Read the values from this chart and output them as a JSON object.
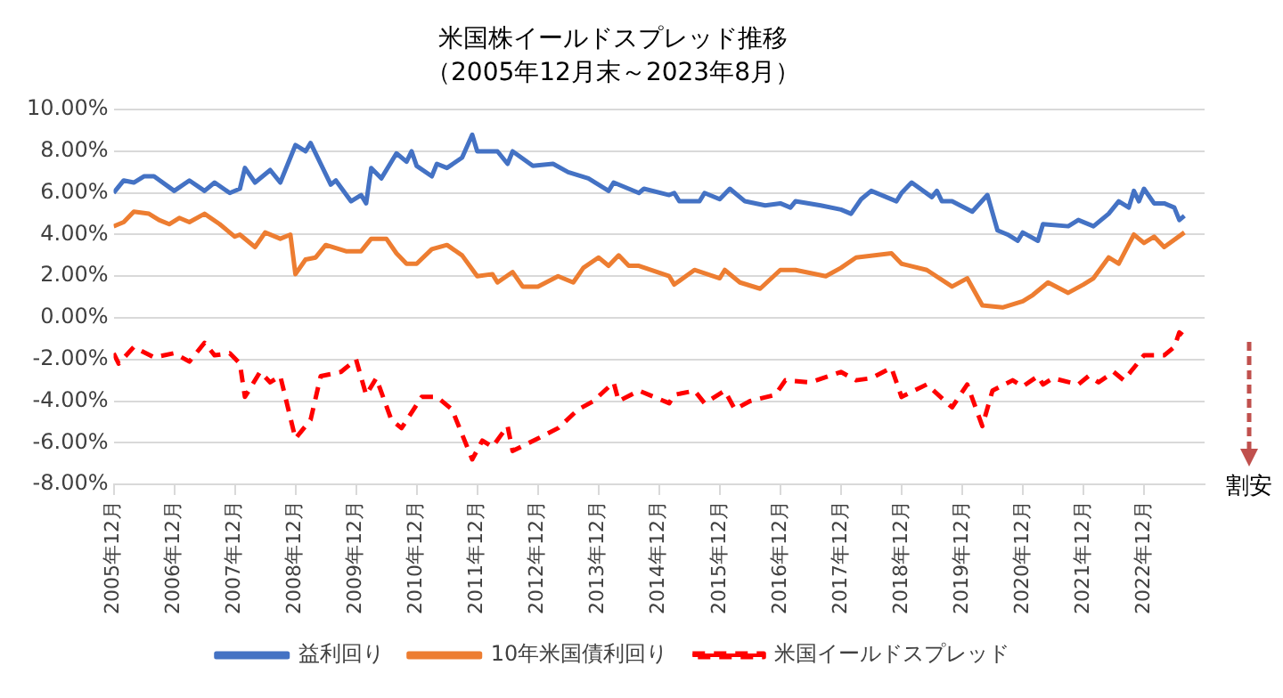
{
  "chart_data": {
    "type": "line",
    "title": "米国株イールドスプレッド推移",
    "subtitle": "（2005年12月末～2023年8月）",
    "annotations": [
      "割安"
    ],
    "xlim": [
      "2005-12",
      "2023-12"
    ],
    "xticks": [
      {
        "value": "2005-12",
        "label": "2005年12月"
      },
      {
        "value": "2006-12",
        "label": "2006年12月"
      },
      {
        "value": "2007-12",
        "label": "2007年12月"
      },
      {
        "value": "2008-12",
        "label": "2008年12月"
      },
      {
        "value": "2009-12",
        "label": "2009年12月"
      },
      {
        "value": "2010-12",
        "label": "2010年12月"
      },
      {
        "value": "2011-12",
        "label": "2011年12月"
      },
      {
        "value": "2012-12",
        "label": "2012年12月"
      },
      {
        "value": "2013-12",
        "label": "2013年12月"
      },
      {
        "value": "2014-12",
        "label": "2014年12月"
      },
      {
        "value": "2015-12",
        "label": "2015年12月"
      },
      {
        "value": "2016-12",
        "label": "2016年12月"
      },
      {
        "value": "2017-12",
        "label": "2017年12月"
      },
      {
        "value": "2018-12",
        "label": "2018年12月"
      },
      {
        "value": "2019-12",
        "label": "2019年12月"
      },
      {
        "value": "2020-12",
        "label": "2020年12月"
      },
      {
        "value": "2021-12",
        "label": "2021年12月"
      },
      {
        "value": "2022-12",
        "label": "2022年12月"
      }
    ],
    "ylim": [
      -8,
      10
    ],
    "yticks": [
      {
        "value": -8,
        "label": "-8.00%"
      },
      {
        "value": -6,
        "label": "-6.00%"
      },
      {
        "value": -4,
        "label": "-4.00%"
      },
      {
        "value": -2,
        "label": "-2.00%"
      },
      {
        "value": 0,
        "label": "0.00%"
      },
      {
        "value": 2,
        "label": "2.00%"
      },
      {
        "value": 4,
        "label": "4.00%"
      },
      {
        "value": 6,
        "label": "6.00%"
      },
      {
        "value": 8,
        "label": "8.00%"
      },
      {
        "value": 10,
        "label": "10.00%"
      }
    ],
    "grid": "y",
    "legend": "bottom",
    "marker": "none",
    "series": [
      {
        "name": "益利回り",
        "color": "#4472c4",
        "line_style": "solid",
        "x": [
          "2005-12",
          "2006-02",
          "2006-04",
          "2006-06",
          "2006-08",
          "2006-12",
          "2007-03",
          "2007-06",
          "2007-08",
          "2007-11",
          "2008-01",
          "2008-02",
          "2008-04",
          "2008-07",
          "2008-09",
          "2008-12",
          "2009-02",
          "2009-03",
          "2009-07",
          "2009-08",
          "2009-11",
          "2010-01",
          "2010-02",
          "2010-03",
          "2010-05",
          "2010-08",
          "2010-10",
          "2010-11",
          "2010-12",
          "2011-03",
          "2011-04",
          "2011-06",
          "2011-09",
          "2011-11",
          "2011-12",
          "2012-04",
          "2012-06",
          "2012-07",
          "2012-11",
          "2013-03",
          "2013-06",
          "2013-10",
          "2014-02",
          "2014-03",
          "2014-08",
          "2014-09",
          "2015-02",
          "2015-03",
          "2015-04",
          "2015-08",
          "2015-09",
          "2015-12",
          "2016-02",
          "2016-05",
          "2016-09",
          "2016-12",
          "2017-02",
          "2017-03",
          "2017-08",
          "2017-12",
          "2018-02",
          "2018-04",
          "2018-06",
          "2018-11",
          "2018-12",
          "2019-02",
          "2019-06",
          "2019-07",
          "2019-08",
          "2019-10",
          "2020-02",
          "2020-05",
          "2020-07",
          "2020-09",
          "2020-11",
          "2020-12",
          "2021-03",
          "2021-04",
          "2021-09",
          "2021-11",
          "2022-02",
          "2022-05",
          "2022-07",
          "2022-09",
          "2022-10",
          "2022-11",
          "2022-12",
          "2023-02",
          "2023-04",
          "2023-06",
          "2023-07",
          "2023-08"
        ],
        "values": [
          6.0,
          6.6,
          6.5,
          6.8,
          6.8,
          6.1,
          6.6,
          6.1,
          6.5,
          6.0,
          6.2,
          7.2,
          6.5,
          7.1,
          6.5,
          8.3,
          8.0,
          8.4,
          6.4,
          6.6,
          5.6,
          5.9,
          5.5,
          7.2,
          6.7,
          7.9,
          7.5,
          8.0,
          7.3,
          6.8,
          7.4,
          7.2,
          7.7,
          8.8,
          8.0,
          8.0,
          7.4,
          8.0,
          7.3,
          7.4,
          7.0,
          6.7,
          6.1,
          6.5,
          6.0,
          6.2,
          5.9,
          6.0,
          5.6,
          5.6,
          6.0,
          5.7,
          6.2,
          5.6,
          5.4,
          5.5,
          5.3,
          5.6,
          5.4,
          5.2,
          5.0,
          5.7,
          6.1,
          5.6,
          6.0,
          6.5,
          5.8,
          6.1,
          5.6,
          5.6,
          5.1,
          5.9,
          4.2,
          4.0,
          3.7,
          4.1,
          3.7,
          4.5,
          4.4,
          4.7,
          4.4,
          5.0,
          5.6,
          5.3,
          6.1,
          5.6,
          6.2,
          5.5,
          5.5,
          5.3,
          4.7,
          4.9
        ]
      },
      {
        "name": "10年米国債利回り",
        "color": "#ed7d31",
        "line_style": "solid",
        "x": [
          "2005-12",
          "2006-02",
          "2006-04",
          "2006-07",
          "2006-09",
          "2006-11",
          "2007-01",
          "2007-03",
          "2007-06",
          "2007-09",
          "2007-12",
          "2008-01",
          "2008-04",
          "2008-06",
          "2008-09",
          "2008-11",
          "2008-12",
          "2009-02",
          "2009-04",
          "2009-06",
          "2009-10",
          "2010-01",
          "2010-03",
          "2010-06",
          "2010-08",
          "2010-10",
          "2010-12",
          "2011-03",
          "2011-06",
          "2011-09",
          "2011-12",
          "2012-03",
          "2012-04",
          "2012-07",
          "2012-09",
          "2012-12",
          "2013-04",
          "2013-07",
          "2013-09",
          "2013-12",
          "2014-02",
          "2014-04",
          "2014-06",
          "2014-08",
          "2015-02",
          "2015-03",
          "2015-07",
          "2015-12",
          "2016-01",
          "2016-04",
          "2016-08",
          "2016-12",
          "2017-03",
          "2017-09",
          "2017-12",
          "2018-03",
          "2018-10",
          "2018-12",
          "2019-05",
          "2019-10",
          "2020-01",
          "2020-04",
          "2020-08",
          "2020-12",
          "2021-02",
          "2021-05",
          "2021-09",
          "2021-12",
          "2022-02",
          "2022-05",
          "2022-07",
          "2022-10",
          "2022-12",
          "2023-02",
          "2023-04",
          "2023-08"
        ],
        "values": [
          4.4,
          4.6,
          5.1,
          5.0,
          4.7,
          4.5,
          4.8,
          4.6,
          5.0,
          4.5,
          3.9,
          4.0,
          3.4,
          4.1,
          3.8,
          4.0,
          2.1,
          2.8,
          2.9,
          3.5,
          3.2,
          3.2,
          3.8,
          3.8,
          3.1,
          2.6,
          2.6,
          3.3,
          3.5,
          3.0,
          2.0,
          2.1,
          1.7,
          2.2,
          1.5,
          1.5,
          2.0,
          1.7,
          2.4,
          2.9,
          2.5,
          3.0,
          2.5,
          2.5,
          2.0,
          1.6,
          2.3,
          1.9,
          2.3,
          1.7,
          1.4,
          2.3,
          2.3,
          2.0,
          2.4,
          2.9,
          3.1,
          2.6,
          2.3,
          1.5,
          1.9,
          0.6,
          0.5,
          0.8,
          1.1,
          1.7,
          1.2,
          1.6,
          1.9,
          2.9,
          2.6,
          4.0,
          3.6,
          3.9,
          3.4,
          4.1
        ]
      },
      {
        "name": "米国イールドスプレッド",
        "color": "#ff0000",
        "line_style": "dashed",
        "x": [
          "2005-12",
          "2006-01",
          "2006-04",
          "2006-08",
          "2006-12",
          "2007-03",
          "2007-06",
          "2007-08",
          "2007-11",
          "2008-01",
          "2008-02",
          "2008-05",
          "2008-07",
          "2008-09",
          "2008-12",
          "2009-03",
          "2009-05",
          "2009-09",
          "2009-12",
          "2010-02",
          "2010-04",
          "2010-07",
          "2010-09",
          "2011-01",
          "2011-04",
          "2011-07",
          "2011-11",
          "2012-01",
          "2012-03",
          "2012-06",
          "2012-07",
          "2012-12",
          "2013-04",
          "2013-08",
          "2013-11",
          "2014-03",
          "2014-04",
          "2014-08",
          "2015-02",
          "2015-03",
          "2015-07",
          "2015-09",
          "2016-01",
          "2016-03",
          "2016-06",
          "2016-11",
          "2017-01",
          "2017-06",
          "2017-12",
          "2018-03",
          "2018-06",
          "2018-10",
          "2018-12",
          "2019-05",
          "2019-10",
          "2020-01",
          "2020-04",
          "2020-06",
          "2020-10",
          "2020-12",
          "2021-03",
          "2021-04",
          "2021-06",
          "2021-11",
          "2022-01",
          "2022-03",
          "2022-06",
          "2022-08",
          "2022-12",
          "2023-04",
          "2023-06",
          "2023-07",
          "2023-08"
        ],
        "values": [
          -1.7,
          -2.2,
          -1.4,
          -1.9,
          -1.7,
          -2.1,
          -1.2,
          -1.8,
          -1.7,
          -2.2,
          -3.8,
          -2.6,
          -3.1,
          -2.8,
          -5.8,
          -4.9,
          -2.8,
          -2.6,
          -2.0,
          -3.7,
          -2.9,
          -4.9,
          -5.3,
          -3.8,
          -3.8,
          -4.4,
          -6.8,
          -5.9,
          -6.2,
          -5.2,
          -6.4,
          -5.8,
          -5.3,
          -4.4,
          -4.0,
          -3.1,
          -4.0,
          -3.5,
          -4.1,
          -3.7,
          -3.5,
          -4.1,
          -3.5,
          -4.4,
          -4.0,
          -3.7,
          -3.0,
          -3.1,
          -2.6,
          -3.0,
          -2.9,
          -2.4,
          -3.8,
          -3.2,
          -4.3,
          -3.2,
          -5.2,
          -3.5,
          -3.0,
          -3.3,
          -2.8,
          -3.2,
          -2.9,
          -3.2,
          -2.8,
          -3.1,
          -2.6,
          -3.0,
          -1.8,
          -1.8,
          -1.4,
          -0.7,
          -0.9
        ]
      }
    ]
  }
}
